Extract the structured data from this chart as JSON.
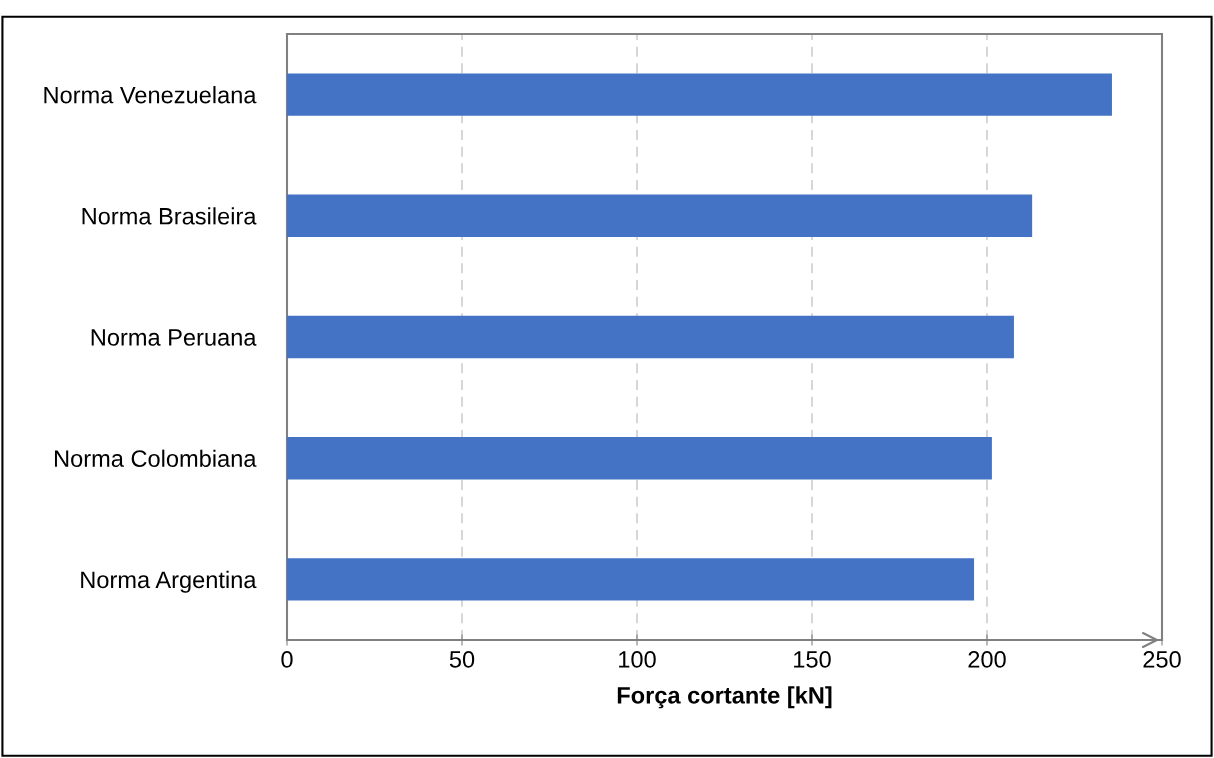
{
  "chart_data": {
    "type": "bar",
    "orientation": "horizontal",
    "xlabel": "Força cortante [kN]",
    "categories": [
      "Norma Venezuelana",
      "Norma Brasileira",
      "Norma Peruana",
      "Norma Colombiana",
      "Norma Argentina"
    ],
    "values": [
      235.7,
      212.9,
      207.7,
      201.4,
      196.3
    ],
    "color": "#4472c4",
    "xlim": [
      0,
      250
    ],
    "xticks": [
      0,
      50,
      100,
      150,
      200,
      250
    ],
    "grid": "x"
  }
}
